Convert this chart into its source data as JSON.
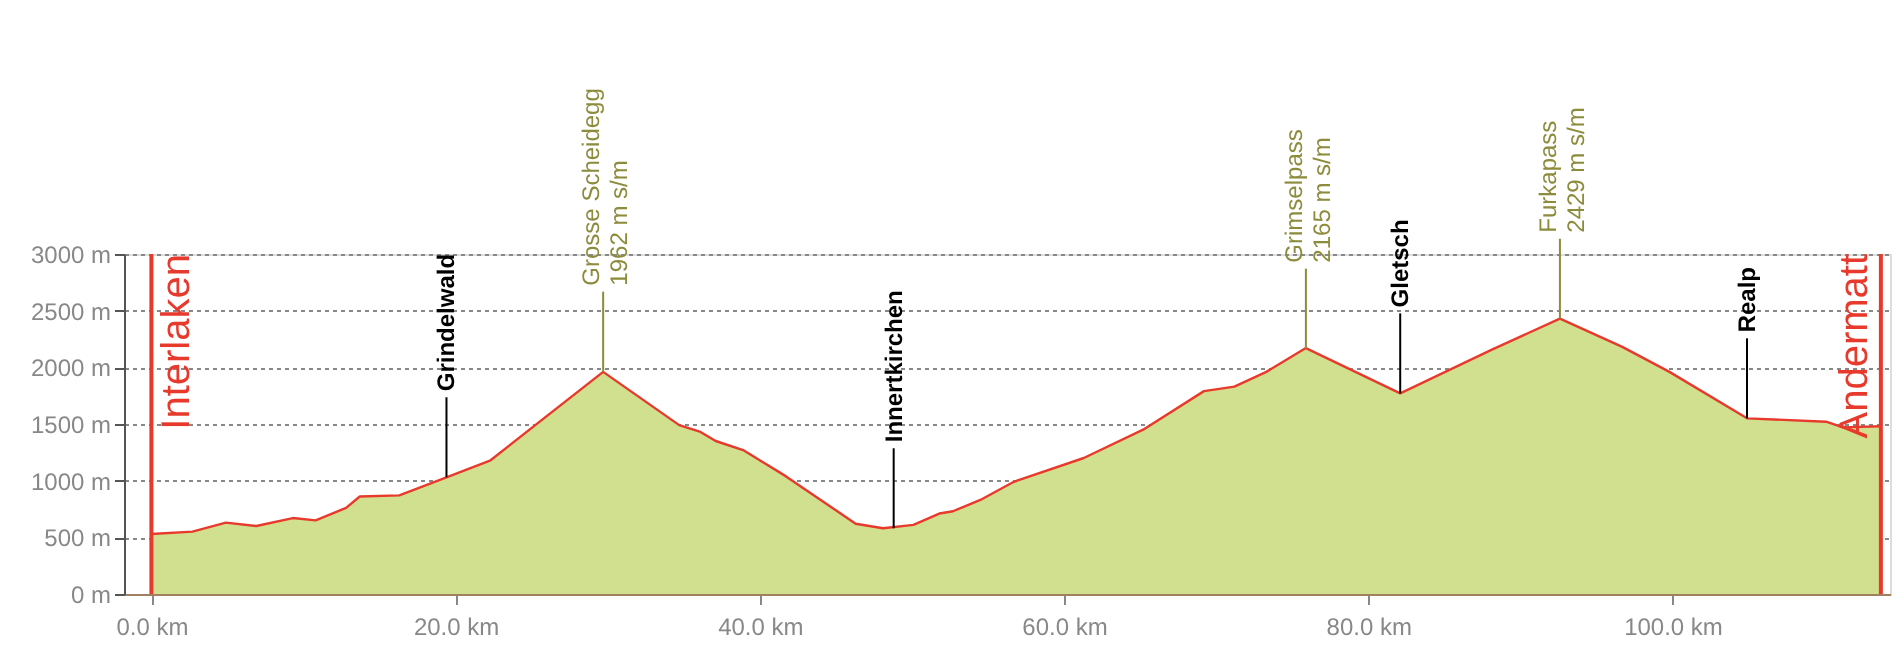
{
  "chart_data": {
    "type": "area",
    "x": [
      0,
      2.7,
      4.9,
      6.9,
      9.3,
      10.8,
      12.8,
      13.7,
      16.3,
      19.4,
      22.3,
      29.7,
      34.7,
      36.1,
      37.1,
      38.9,
      41.7,
      46.3,
      48.1,
      50.1,
      51.8,
      52.7,
      54.5,
      56.7,
      61.3,
      65.2,
      69.2,
      71.2,
      73.3,
      75.9,
      82.1,
      88.2,
      92.6,
      96.7,
      99.8,
      104.9,
      110.1,
      111.2,
      113.7
    ],
    "series": [
      {
        "color": "#d1e08e",
        "values": [
          530,
          550,
          630,
          600,
          670,
          650,
          760,
          860,
          870,
          1030,
          1180,
          1960,
          1490,
          1430,
          1350,
          1270,
          1040,
          620,
          580,
          610,
          710,
          730,
          830,
          990,
          1200,
          1450,
          1790,
          1830,
          1960,
          2170,
          1770,
          2160,
          2430,
          2180,
          1960,
          1550,
          1520,
          1470,
          1480
        ]
      }
    ],
    "xlim": [
      -1.8,
      114.3
    ],
    "ylim": [
      0,
      3000
    ],
    "xticks": [
      {
        "value": 0,
        "label": "0.0 km"
      },
      {
        "value": 20,
        "label": "20.0 km"
      },
      {
        "value": 40,
        "label": "40.0 km"
      },
      {
        "value": 60,
        "label": "60.0 km"
      },
      {
        "value": 80,
        "label": "80.0 km"
      },
      {
        "value": 100,
        "label": "100.0 km"
      }
    ],
    "yticks": [
      {
        "value": 0,
        "label": "0 m"
      },
      {
        "value": 500,
        "label": "500 m"
      },
      {
        "value": 1000,
        "label": "1000 m"
      },
      {
        "value": 1500,
        "label": "1500 m"
      },
      {
        "value": 2000,
        "label": "2000 m"
      },
      {
        "value": 2500,
        "label": "2500 m"
      },
      {
        "value": 3000,
        "label": "3000 m"
      }
    ],
    "grid": "y",
    "ref_lines": [
      {
        "axis": "x",
        "value": 0,
        "label": "Interlaken",
        "color": "#e8392d"
      },
      {
        "axis": "x",
        "value": 113.7,
        "label": "Andermatt",
        "color": "#e8392d"
      }
    ],
    "annotations": [
      {
        "text": "Grindelwald",
        "x": 19.4,
        "y": 1030
      },
      {
        "text": "Grosse Scheidegg\n1962 m s/m",
        "x": 29.7,
        "y": 1962
      },
      {
        "text": "Innertkirchen",
        "x": 48.8,
        "y": 580
      },
      {
        "text": "Grimselpass\n2165 m s/m",
        "x": 75.9,
        "y": 2165
      },
      {
        "text": "Gletsch",
        "x": 82.1,
        "y": 1770
      },
      {
        "text": "Furkapass\n2429 m s/m",
        "x": 92.6,
        "y": 2429
      },
      {
        "text": "Realp",
        "x": 104.9,
        "y": 1550
      }
    ]
  }
}
